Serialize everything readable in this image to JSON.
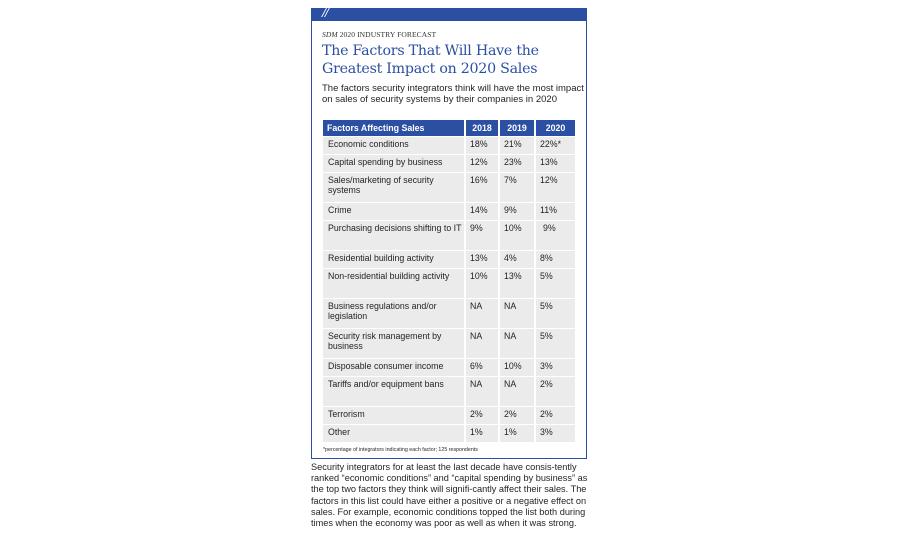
{
  "sidebar_box": {
    "slashes": "//",
    "kicker_italic": "SDM",
    "kicker_rest": " 2020 INDUSTRY FORECAST",
    "title": "The Factors That Will Have the Greatest Impact on 2020 Sales",
    "subtitle": "The factors security integrators think will have the most impact on sales of security systems by their companies in 2020",
    "colors": {
      "accent": "#2b4fa2",
      "row_background": "#ebebeb",
      "text": "#231f20"
    },
    "table": {
      "headers": [
        "Factors Affecting Sales",
        "2018",
        "2019",
        "2020"
      ],
      "rows": [
        {
          "factor": "Economic conditions",
          "y2018": "18%",
          "y2019": "21%",
          "y2020": "22%*"
        },
        {
          "factor": "Capital spending by business",
          "y2018": "12%",
          "y2019": "23%",
          "y2020": "13%"
        },
        {
          "factor": "Sales/marketing of security systems",
          "y2018": "16%",
          "y2019": "7%",
          "y2020": "12%"
        },
        {
          "factor": "Crime",
          "y2018": "14%",
          "y2019": "9%",
          "y2020": "11%"
        },
        {
          "factor": "Purchasing decisions shifting to IT",
          "y2018": "9%",
          "y2019": "10%",
          "y2020": "9%"
        },
        {
          "factor": "Residential building activity",
          "y2018": "13%",
          "y2019": "4%",
          "y2020": "8%"
        },
        {
          "factor": "Non-residential building activity",
          "y2018": "10%",
          "y2019": "13%",
          "y2020": "5%"
        },
        {
          "factor": "Business regulations and/or legislation",
          "y2018": "NA",
          "y2019": "NA",
          "y2020": "5%"
        },
        {
          "factor": "Security risk management by business",
          "y2018": "NA",
          "y2019": "NA",
          "y2020": "5%"
        },
        {
          "factor": "Disposable consumer income",
          "y2018": "6%",
          "y2019": "10%",
          "y2020": "3%"
        },
        {
          "factor": "Tariffs and/or equipment bans",
          "y2018": "NA",
          "y2019": "NA",
          "y2020": "2%"
        },
        {
          "factor": "Terrorism",
          "y2018": "2%",
          "y2019": "2%",
          "y2020": "2%"
        },
        {
          "factor": "Other",
          "y2018": "1%",
          "y2019": "1%",
          "y2020": "3%"
        }
      ]
    },
    "footnote": "*percentage of integrators indicating each factor; 125 respondents"
  },
  "article": {
    "paragraph": "Security integrators for at least the last decade have consis-tently ranked “economic conditions” and “capital spending by business” as the top two factors they think will signifi-cantly affect their sales. The factors in this list could have either a positive or a negative effect on sales. For example, economic conditions topped the list both during times when the economy was poor as well as when it was strong."
  }
}
